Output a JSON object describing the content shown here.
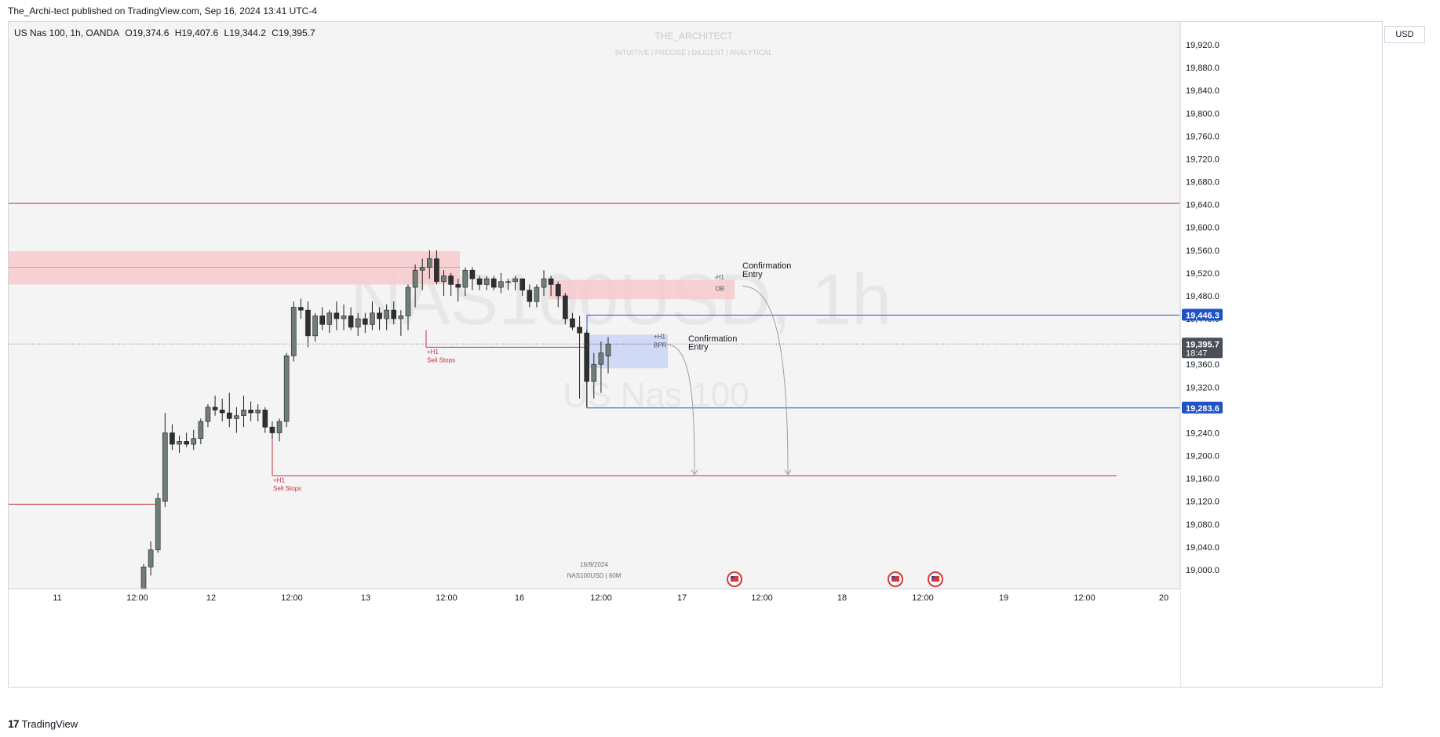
{
  "header": {
    "published_line": "The_Archi-tect published on TradingView.com, Sep 16, 2024 13:41 UTC-4"
  },
  "legend": {
    "symbol": "US Nas 100, 1h, OANDA",
    "open": "O19,374.6",
    "high": "H19,407.6",
    "low": "L19,344.2",
    "close": "C19,395.7"
  },
  "currency": "USD",
  "watermark": {
    "author": "THE_ARCHITECT",
    "tagline": "INTUITIVE | PRECISE | DILIGENT | ANALYTICAL",
    "symbol": "NAS100USD, 1h",
    "name": "US Nas 100"
  },
  "footer": {
    "brand": "TradingView",
    "logo_glyph": "17"
  },
  "colors": {
    "up_candle": "#6f7f76",
    "down_candle": "#2f3033",
    "resistance": "#c7303a",
    "support_blue": "#1e53c7",
    "price_tag": "#4a4e57",
    "zone_red": "#f6c9cd",
    "zone_blue": "#c9d3f5"
  },
  "chart_data": {
    "type": "candlestick",
    "instrument": "NAS100USD",
    "timeframe": "1h",
    "ylim": [
      18960,
      19950
    ],
    "y_ticks": [
      "19,920.0",
      "19,880.0",
      "19,840.0",
      "19,800.0",
      "19,760.0",
      "19,720.0",
      "19,680.0",
      "19,640.0",
      "19,600.0",
      "19,560.0",
      "19,520.0",
      "19,480.0",
      "19,440.0",
      "19,400.0",
      "19,360.0",
      "19,320.0",
      "19,280.0",
      "19,240.0",
      "19,200.0",
      "19,160.0",
      "19,120.0",
      "19,080.0",
      "19,040.0",
      "19,000.0"
    ],
    "y_tick_values": [
      19920,
      19880,
      19840,
      19800,
      19760,
      19720,
      19680,
      19640,
      19600,
      19560,
      19520,
      19480,
      19440,
      19400,
      19360,
      19320,
      19280,
      19240,
      19200,
      19160,
      19120,
      19080,
      19040,
      19000
    ],
    "x_tick_labels": [
      "11",
      "12:00",
      "12",
      "12:00",
      "13",
      "12:00",
      "16",
      "12:00",
      "17",
      "12:00",
      "18",
      "12:00",
      "19",
      "12:00",
      "20"
    ],
    "candles_ohlc": [
      [
        18960,
        19010,
        18950,
        19005
      ],
      [
        19005,
        19050,
        18990,
        19035
      ],
      [
        19035,
        19135,
        19030,
        19125
      ],
      [
        19120,
        19275,
        19110,
        19240
      ],
      [
        19240,
        19255,
        19210,
        19220
      ],
      [
        19220,
        19235,
        19205,
        19225
      ],
      [
        19225,
        19240,
        19215,
        19220
      ],
      [
        19220,
        19245,
        19210,
        19230
      ],
      [
        19230,
        19265,
        19220,
        19260
      ],
      [
        19260,
        19290,
        19250,
        19285
      ],
      [
        19285,
        19305,
        19270,
        19280
      ],
      [
        19280,
        19300,
        19260,
        19275
      ],
      [
        19275,
        19310,
        19250,
        19265
      ],
      [
        19265,
        19285,
        19240,
        19270
      ],
      [
        19270,
        19305,
        19250,
        19280
      ],
      [
        19280,
        19295,
        19260,
        19275
      ],
      [
        19275,
        19290,
        19260,
        19280
      ],
      [
        19280,
        19285,
        19240,
        19250
      ],
      [
        19250,
        19260,
        19230,
        19240
      ],
      [
        19240,
        19265,
        19225,
        19260
      ],
      [
        19260,
        19380,
        19250,
        19375
      ],
      [
        19375,
        19470,
        19365,
        19460
      ],
      [
        19460,
        19475,
        19440,
        19455
      ],
      [
        19455,
        19470,
        19390,
        19410
      ],
      [
        19410,
        19450,
        19400,
        19445
      ],
      [
        19445,
        19460,
        19420,
        19430
      ],
      [
        19430,
        19455,
        19415,
        19450
      ],
      [
        19450,
        19470,
        19420,
        19440
      ],
      [
        19440,
        19465,
        19420,
        19445
      ],
      [
        19445,
        19460,
        19420,
        19425
      ],
      [
        19425,
        19450,
        19410,
        19440
      ],
      [
        19440,
        19450,
        19415,
        19430
      ],
      [
        19430,
        19470,
        19420,
        19450
      ],
      [
        19450,
        19460,
        19420,
        19440
      ],
      [
        19440,
        19465,
        19420,
        19455
      ],
      [
        19455,
        19470,
        19430,
        19440
      ],
      [
        19440,
        19455,
        19410,
        19445
      ],
      [
        19445,
        19500,
        19420,
        19495
      ],
      [
        19495,
        19535,
        19460,
        19525
      ],
      [
        19525,
        19545,
        19490,
        19530
      ],
      [
        19530,
        19560,
        19510,
        19545
      ],
      [
        19545,
        19560,
        19500,
        19505
      ],
      [
        19505,
        19525,
        19480,
        19515
      ],
      [
        19515,
        19520,
        19480,
        19500
      ],
      [
        19500,
        19510,
        19470,
        19495
      ],
      [
        19495,
        19530,
        19480,
        19525
      ],
      [
        19525,
        19530,
        19490,
        19510
      ],
      [
        19510,
        19515,
        19490,
        19500
      ],
      [
        19500,
        19515,
        19490,
        19510
      ],
      [
        19510,
        19515,
        19490,
        19495
      ],
      [
        19495,
        19520,
        19485,
        19505
      ],
      [
        19505,
        19510,
        19490,
        19505
      ],
      [
        19505,
        19515,
        19490,
        19510
      ],
      [
        19510,
        19510,
        19480,
        19490
      ],
      [
        19490,
        19500,
        19460,
        19470
      ],
      [
        19470,
        19500,
        19460,
        19495
      ],
      [
        19495,
        19525,
        19480,
        19510
      ],
      [
        19510,
        19515,
        19480,
        19500
      ],
      [
        19500,
        19505,
        19460,
        19480
      ],
      [
        19480,
        19485,
        19430,
        19440
      ],
      [
        19440,
        19450,
        19420,
        19425
      ],
      [
        19425,
        19445,
        19300,
        19415
      ],
      [
        19415,
        19420,
        19285,
        19330
      ],
      [
        19330,
        19380,
        19300,
        19360
      ],
      [
        19360,
        19400,
        19310,
        19380
      ],
      [
        19374.6,
        19407.6,
        19344.2,
        19395.7
      ]
    ],
    "levels": [
      {
        "name": "upper-resistance",
        "price": 19642,
        "color": "red"
      },
      {
        "name": "left-resistance",
        "price": 19115,
        "color": "red"
      },
      {
        "name": "sell-stops-low",
        "price": 19165,
        "color": "red"
      },
      {
        "name": "sell-stops-mid",
        "price": 19390,
        "color": "red"
      },
      {
        "name": "price-19446",
        "price": 19446.3,
        "color": "blue"
      },
      {
        "name": "price-19283",
        "price": 19283.6,
        "color": "blue"
      },
      {
        "name": "last-price",
        "price": 19395.7,
        "color": "gray"
      }
    ],
    "zones": [
      {
        "name": "supply-zone-left",
        "top": 19558,
        "bottom": 19500,
        "color": "red"
      },
      {
        "name": "h1-ob-zone",
        "top": 19508,
        "bottom": 19474,
        "color": "red"
      },
      {
        "name": "h1-bpr-zone",
        "top": 19412,
        "bottom": 19353,
        "color": "blue"
      }
    ],
    "annotations": {
      "ob_label": [
        "-H1",
        "OB"
      ],
      "bpr_label": [
        "+H1",
        "BPR"
      ],
      "confirmation_1": [
        "Confirmation",
        "Entry"
      ],
      "confirmation_2": [
        "Confirmation",
        "Entry"
      ],
      "sell_stops_1": [
        "+H1",
        "Sell Stops"
      ],
      "sell_stops_2": [
        "+H1",
        "Sell Stops"
      ],
      "date_marker": "16/9/2024",
      "symbol_marker": "NAS100USD | 60M"
    },
    "price_tags": [
      {
        "value": "19,446.3",
        "color": "blue"
      },
      {
        "value": "19,395.7",
        "sub": "18:47",
        "color": "gray"
      },
      {
        "value": "19,283.6",
        "color": "blue"
      }
    ]
  }
}
